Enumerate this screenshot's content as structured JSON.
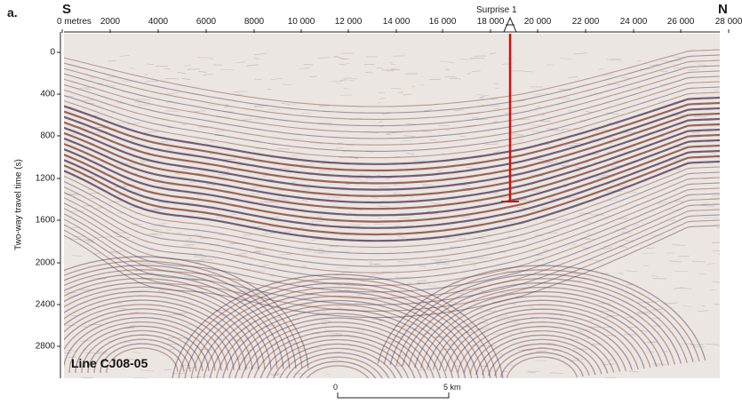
{
  "panel_label": "a.",
  "direction_left": "S",
  "direction_right": "N",
  "well": {
    "name": "Surprise 1"
  },
  "x_axis": {
    "ticks": [
      "0 metres",
      "2000",
      "4000",
      "6000",
      "8000",
      "10 000",
      "12 000",
      "14 000",
      "16 000",
      "18 000",
      "20 000",
      "22 000",
      "24 000",
      "26 000",
      "28 000"
    ]
  },
  "y_axis": {
    "title": "Two-way travel time (s)",
    "ticks": [
      "0",
      "400",
      "800",
      "1200",
      "1600",
      "2000",
      "2400",
      "2800"
    ]
  },
  "line_label": "Line CJ08-05",
  "scale_bar": {
    "start": "0",
    "end": "5 km"
  },
  "colors": {
    "trough": "#4a2f4e",
    "peak": "#7a3a30",
    "well": "#c81414",
    "background": "#ece6e2"
  }
}
